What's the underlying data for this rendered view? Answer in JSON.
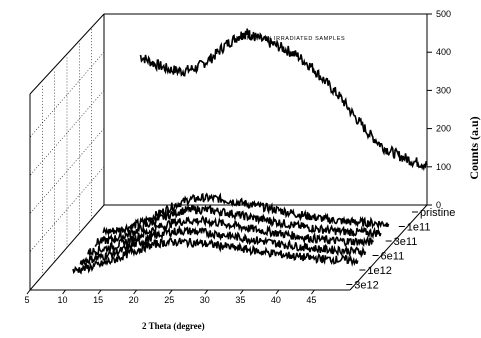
{
  "chart_data": {
    "type": "line",
    "title": "LITHIUM ION IRRADIATED SAMPLES",
    "xlabel": "2 Theta (degree)",
    "zlabel": "Counts (a.u)",
    "xlim": [
      5,
      50
    ],
    "zlim": [
      0,
      500
    ],
    "x_ticks": [
      "5",
      "10",
      "15",
      "20",
      "25",
      "30",
      "35",
      "40",
      "45"
    ],
    "z_ticks": [
      "0",
      "100",
      "200",
      "300",
      "400",
      "500"
    ],
    "grid": true,
    "series": [
      {
        "name": "pristine",
        "x": [
          10,
          12,
          14,
          16,
          18,
          20,
          22,
          24,
          25,
          26,
          28,
          30,
          32,
          34,
          36,
          38,
          40,
          42,
          44,
          46,
          48,
          50
        ],
        "values": [
          390,
          370,
          355,
          350,
          360,
          385,
          420,
          445,
          450,
          440,
          425,
          410,
          390,
          360,
          320,
          280,
          230,
          185,
          150,
          130,
          115,
          105
        ]
      },
      {
        "name": "1e11",
        "x": [
          10,
          12,
          14,
          16,
          18,
          20,
          22,
          24,
          26,
          28,
          30,
          32,
          34,
          36,
          38,
          40,
          42,
          44,
          46,
          48,
          50
        ],
        "values": [
          40,
          45,
          55,
          70,
          90,
          110,
          125,
          130,
          128,
          122,
          115,
          108,
          100,
          92,
          85,
          78,
          72,
          68,
          66,
          64,
          62
        ]
      },
      {
        "name": "3e11",
        "x": [
          10,
          12,
          14,
          16,
          18,
          20,
          22,
          24,
          26,
          28,
          30,
          32,
          34,
          36,
          38,
          40,
          42,
          44,
          46,
          48,
          50
        ],
        "values": [
          35,
          42,
          52,
          68,
          88,
          105,
          118,
          122,
          120,
          115,
          108,
          100,
          94,
          87,
          80,
          74,
          69,
          65,
          63,
          62,
          60
        ]
      },
      {
        "name": "6e11",
        "x": [
          10,
          12,
          14,
          16,
          18,
          20,
          22,
          24,
          26,
          28,
          30,
          32,
          34,
          36,
          38,
          40,
          42,
          44,
          46,
          48,
          50
        ],
        "values": [
          32,
          40,
          50,
          64,
          82,
          98,
          110,
          115,
          114,
          110,
          104,
          97,
          90,
          84,
          78,
          72,
          67,
          63,
          61,
          60,
          58
        ]
      },
      {
        "name": "1e12",
        "x": [
          10,
          12,
          14,
          16,
          18,
          20,
          22,
          24,
          26,
          28,
          30,
          32,
          34,
          36,
          38,
          40,
          42,
          44,
          46,
          48,
          50
        ],
        "values": [
          30,
          38,
          48,
          60,
          78,
          94,
          106,
          110,
          109,
          105,
          100,
          94,
          88,
          82,
          76,
          71,
          66,
          62,
          60,
          58,
          56
        ]
      },
      {
        "name": "3e12",
        "x": [
          10,
          12,
          14,
          16,
          18,
          20,
          22,
          24,
          26,
          28,
          30,
          32,
          34,
          36,
          38,
          40,
          42,
          44,
          46,
          48,
          50
        ],
        "values": [
          28,
          36,
          45,
          58,
          75,
          90,
          100,
          104,
          103,
          100,
          96,
          90,
          85,
          79,
          74,
          69,
          64,
          61,
          58,
          57,
          55
        ]
      }
    ]
  }
}
